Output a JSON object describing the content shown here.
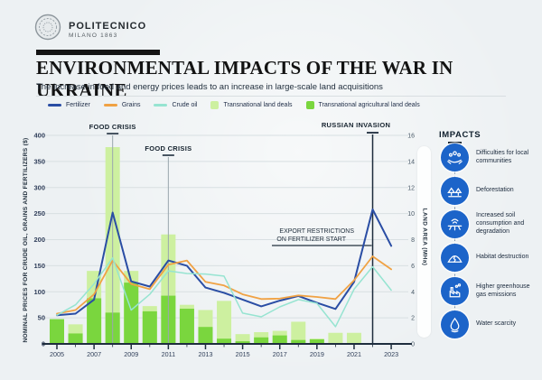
{
  "header": {
    "logo_title": "POLITECNICO",
    "logo_subtitle": "MILANO 1863",
    "title": "ENVIRONMENTAL IMPACTS OF THE WAR IN UKRAINE",
    "subtitle": "The increase in food and energy prices leads to an increase in large-scale land acquisitions"
  },
  "chart_data": {
    "type": "combo",
    "title": "",
    "years": [
      2005,
      2006,
      2007,
      2008,
      2009,
      2010,
      2011,
      2012,
      2013,
      2014,
      2015,
      2016,
      2017,
      2018,
      2019,
      2020,
      2021,
      2022,
      2023
    ],
    "x_tick_labels": [
      2005,
      2007,
      2009,
      2011,
      2013,
      2015,
      2017,
      2019,
      2021,
      2023
    ],
    "left_axis": {
      "label": "NOMINAL PRICES FOR CRUDE OIL, GRAINS AND FERTILIZERS ($)",
      "min": 0,
      "max": 400,
      "step": 50
    },
    "right_axis": {
      "label": "LAND AREA (MHa)",
      "min": 0,
      "max": 16,
      "step": 2
    },
    "series": [
      {
        "name": "Fertilizer",
        "type": "line",
        "axis": "left",
        "color": "#2a4da4",
        "values": [
          55,
          58,
          85,
          252,
          120,
          110,
          160,
          150,
          108,
          98,
          85,
          72,
          83,
          92,
          79,
          67,
          119,
          258,
          188
        ]
      },
      {
        "name": "Grains",
        "type": "line",
        "axis": "left",
        "color": "#f0a244",
        "values": [
          58,
          65,
          95,
          160,
          115,
          105,
          152,
          160,
          119,
          112,
          95,
          86,
          87,
          93,
          90,
          86,
          122,
          168,
          143
        ]
      },
      {
        "name": "Crude oil",
        "type": "line",
        "axis": "left",
        "color": "#96e4d1",
        "values": [
          55,
          75,
          115,
          165,
          65,
          95,
          140,
          135,
          134,
          130,
          59,
          52,
          71,
          85,
          78,
          33,
          105,
          148,
          103
        ]
      },
      {
        "name": "Transnational land deals",
        "type": "bar",
        "axis": "right",
        "color": "#cdf0a0",
        "values": [
          1.9,
          1.5,
          5.6,
          15.1,
          5.6,
          2.9,
          8.4,
          3.0,
          2.6,
          3.3,
          0.75,
          0.9,
          1.0,
          1.7,
          0.4,
          0.85,
          0.85,
          null,
          null
        ]
      },
      {
        "name": "Transnational agricultural land deals",
        "type": "bar",
        "axis": "right",
        "color": "#7ad63e",
        "values": [
          1.9,
          0.8,
          3.5,
          2.4,
          4.7,
          2.5,
          3.7,
          2.7,
          1.3,
          0.4,
          0.2,
          0.5,
          0.65,
          0.3,
          0.35,
          null,
          null,
          null,
          null
        ]
      }
    ],
    "annotations": {
      "food_crises": [
        {
          "label": "FOOD CRISIS",
          "year": 2008
        },
        {
          "label": "FOOD CRISIS",
          "year": 2011
        }
      ],
      "invasion": {
        "label": "RUSSIAN INVASION",
        "year": 2022
      },
      "export_restrictions": {
        "lines": [
          "EXPORT RESTRICTIONS",
          "ON FERTILIZER START"
        ]
      }
    }
  },
  "impacts": {
    "title": "IMPACTS",
    "items": [
      {
        "label": "Difficulties for local communities",
        "icon": "community-hands-icon"
      },
      {
        "label": "Deforestation",
        "icon": "deforestation-icon"
      },
      {
        "label": "Increased soil consumption and degradation",
        "icon": "soil-degradation-icon"
      },
      {
        "label": "Habitat destruction",
        "icon": "habitat-destruction-icon"
      },
      {
        "label": "Higher greenhouse gas emissions",
        "icon": "greenhouse-gas-icon"
      },
      {
        "label": "Water scarcity",
        "icon": "water-scarcity-icon"
      }
    ]
  },
  "colors": {
    "axis_dark": "#1e2d3d",
    "grid": "#d8dfe2",
    "annotation_gray": "#9aa6ae",
    "impact_blue": "#1c64c9",
    "text_navy": "#22303e"
  }
}
